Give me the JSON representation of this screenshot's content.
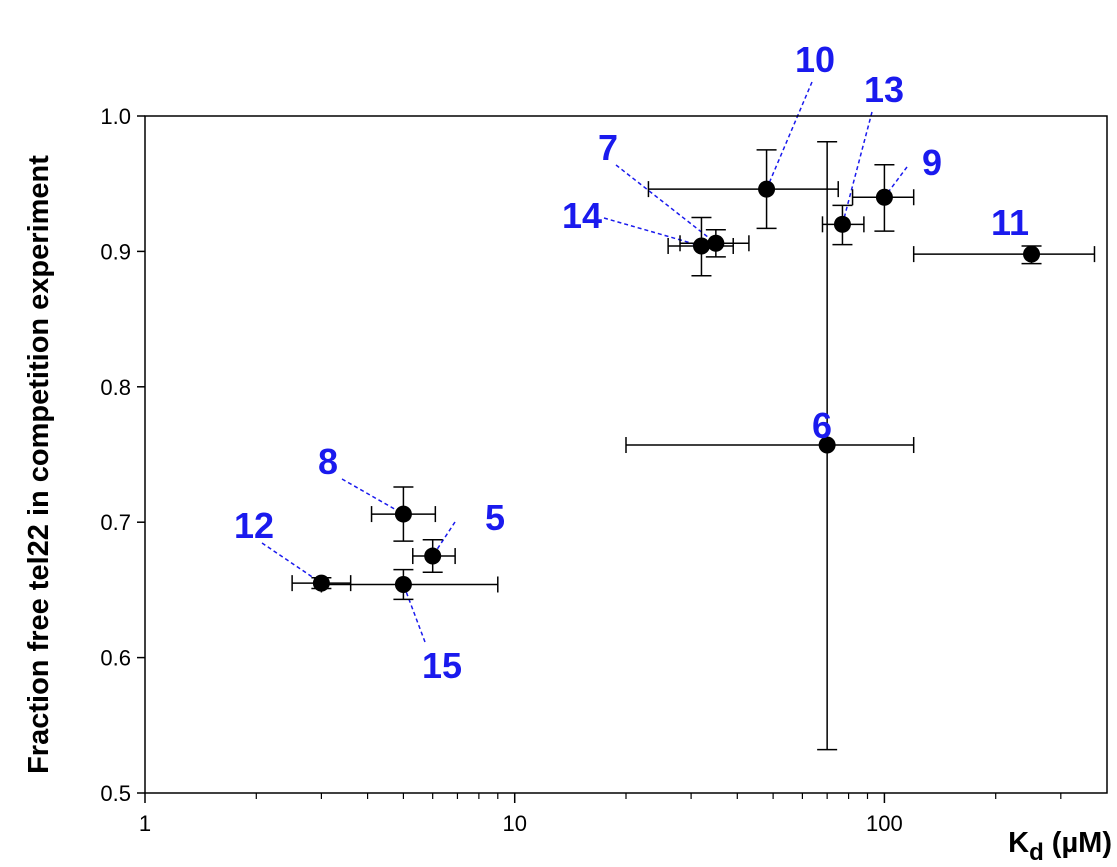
{
  "chart_data": {
    "type": "scatter",
    "title": "",
    "xlabel": {
      "main": "K",
      "sub": "d",
      "rest": " (µM)"
    },
    "ylabel": "Fraction free tel22 in competition experiment",
    "x_scale": "log",
    "xlim": [
      1,
      400
    ],
    "ylim": [
      0.5,
      1.0
    ],
    "x_ticks": [
      1,
      10,
      100
    ],
    "x_tick_labels": [
      "1",
      "10",
      "100"
    ],
    "y_ticks": [
      0.5,
      0.6,
      0.7,
      0.8,
      0.9,
      1.0
    ],
    "y_tick_labels": [
      "0.5",
      "0.6",
      "0.7",
      "0.8",
      "0.9",
      "1.0"
    ],
    "grid": false,
    "legend": "none",
    "marker_color": "#000000",
    "label_color": "#1a1aee",
    "points": [
      {
        "label": "5",
        "x": 6,
        "y": 0.675,
        "x_err": [
          5.3,
          6.9
        ],
        "y_err": [
          0.663,
          0.687
        ]
      },
      {
        "label": "6",
        "x": 70,
        "y": 0.757,
        "x_err": [
          20,
          120
        ],
        "y_err": [
          0.532,
          0.981
        ]
      },
      {
        "label": "7",
        "x": 35,
        "y": 0.906,
        "x_err": [
          28,
          43
        ],
        "y_err": [
          0.896,
          0.916
        ]
      },
      {
        "label": "8",
        "x": 5,
        "y": 0.706,
        "x_err": [
          4.1,
          6.1
        ],
        "y_err": [
          0.686,
          0.726
        ]
      },
      {
        "label": "9",
        "x": 100,
        "y": 0.94,
        "x_err": [
          82,
          120
        ],
        "y_err": [
          0.915,
          0.964
        ]
      },
      {
        "label": "10",
        "x": 48,
        "y": 0.946,
        "x_err": [
          23,
          75
        ],
        "y_err": [
          0.917,
          0.975
        ]
      },
      {
        "label": "11",
        "x": 250,
        "y": 0.898,
        "x_err": [
          120,
          370
        ],
        "y_err": [
          0.891,
          0.904
        ]
      },
      {
        "label": "12",
        "x": 3,
        "y": 0.655,
        "x_err": [
          2.5,
          3.6
        ],
        "y_err": [
          0.651,
          0.659
        ]
      },
      {
        "label": "13",
        "x": 77,
        "y": 0.92,
        "x_err": [
          68,
          88
        ],
        "y_err": [
          0.905,
          0.934
        ]
      },
      {
        "label": "14",
        "x": 32,
        "y": 0.904,
        "x_err": [
          26,
          39
        ],
        "y_err": [
          0.882,
          0.925
        ]
      },
      {
        "label": "15",
        "x": 5,
        "y": 0.654,
        "x_err": [
          3,
          9
        ],
        "y_err": [
          0.643,
          0.665
        ]
      }
    ]
  }
}
